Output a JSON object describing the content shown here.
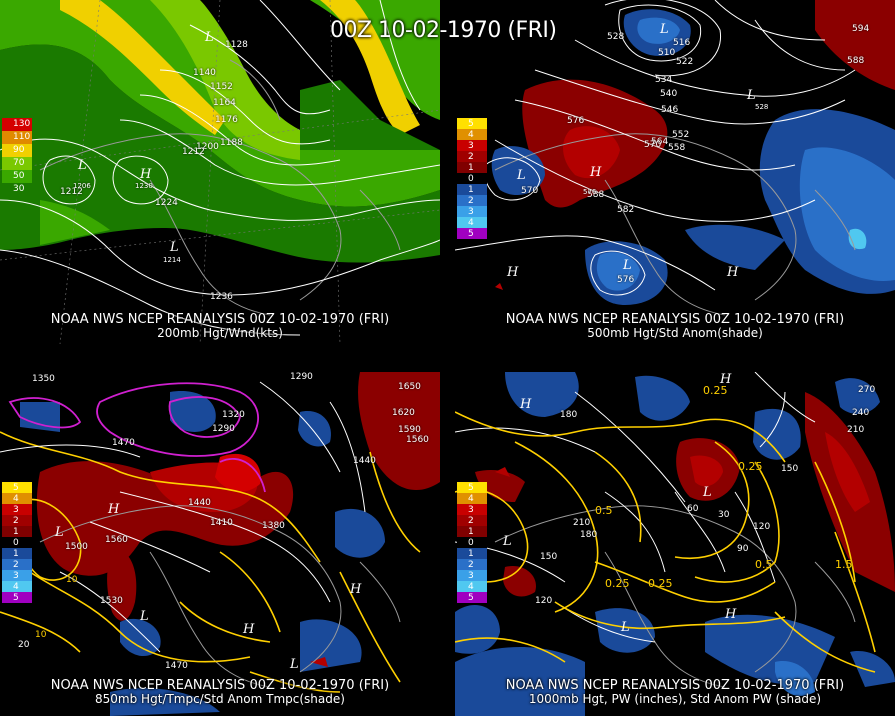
{
  "title": "00Z 10-02-1970 (FRI)",
  "panels": [
    {
      "id": "p200",
      "caption1": "NOAA NWS NCEP REANALYSIS 00Z 10-02-1970 (FRI)",
      "caption2": "200mb Hgt/Wnd(kts)",
      "legend": [
        "130",
        "110",
        "90",
        "70",
        "50",
        "30"
      ],
      "legend_colors": [
        "#d40000",
        "#e08a00",
        "#f0d000",
        "#7ac800",
        "#3aa800",
        "#1a7a00"
      ],
      "labels": [
        "1128",
        "1140",
        "1152",
        "1164",
        "1176",
        "1188",
        "1200",
        "1212",
        "1224",
        "1236",
        "1212",
        "1230",
        "1214",
        "1206"
      ],
      "lows": [
        "L",
        "L",
        "L"
      ],
      "highs": [
        "H"
      ]
    },
    {
      "id": "p500",
      "caption1": "NOAA NWS NCEP REANALYSIS 00Z 10-02-1970 (FRI)",
      "caption2": "500mb Hgt/Std Anom(shade)",
      "legend": [
        "5",
        "4",
        "3",
        "2",
        "1",
        "0",
        "1",
        "2",
        "3",
        "4",
        "5"
      ],
      "legend_colors": [
        "#ffe000",
        "#e09000",
        "#c80000",
        "#a00000",
        "#800000",
        "#000000",
        "#1a4a9a",
        "#2a70c8",
        "#3aa0e8",
        "#50c8f0",
        "#a000c0"
      ],
      "labels": [
        "528",
        "510",
        "516",
        "522",
        "534",
        "540",
        "546",
        "552",
        "558",
        "564",
        "570",
        "576",
        "582",
        "588",
        "594",
        "588",
        "570",
        "576",
        "576",
        "528"
      ],
      "lows": [
        "L",
        "L",
        "L",
        "L"
      ],
      "highs": [
        "H",
        "H",
        "H"
      ]
    },
    {
      "id": "p850",
      "caption1": "NOAA NWS NCEP REANALYSIS 00Z 10-02-1970 (FRI)",
      "caption2": "850mb Hgt/Tmpc/Std Anom Tmpc(shade)",
      "legend": [
        "5",
        "4",
        "3",
        "2",
        "1",
        "0",
        "1",
        "2",
        "3",
        "4",
        "5"
      ],
      "legend_colors": [
        "#ffe000",
        "#e09000",
        "#c80000",
        "#a00000",
        "#800000",
        "#000000",
        "#1a4a9a",
        "#2a70c8",
        "#3aa0e8",
        "#50c8f0",
        "#a000c0"
      ],
      "labels": [
        "1290",
        "1320",
        "1290",
        "1470",
        "1440",
        "1410",
        "1380",
        "1560",
        "1530",
        "1500",
        "1470",
        "1650",
        "1620",
        "1590",
        "1560",
        "1440",
        "1350",
        "10",
        "10",
        "20"
      ],
      "lows": [
        "L",
        "L",
        "L"
      ],
      "highs": [
        "H",
        "H",
        "H"
      ]
    },
    {
      "id": "p1000",
      "caption1": "NOAA NWS NCEP REANALYSIS 00Z 10-02-1970 (FRI)",
      "caption2": "1000mb Hgt, PW (inches), Std Anom PW (shade)",
      "legend": [
        "5",
        "4",
        "3",
        "2",
        "1",
        "0",
        "1",
        "2",
        "3",
        "4",
        "5"
      ],
      "legend_colors": [
        "#ffe000",
        "#e09000",
        "#c80000",
        "#a00000",
        "#800000",
        "#000000",
        "#1a4a9a",
        "#2a70c8",
        "#3aa0e8",
        "#50c8f0",
        "#a000c0"
      ],
      "labels": [
        "180",
        "210",
        "180",
        "150",
        "120",
        "60",
        "30",
        "90",
        "120",
        "150",
        "0.25",
        "0.25",
        "0.5",
        "0.25",
        "0.25",
        "0.5",
        "1.5",
        "270",
        "240",
        "210"
      ],
      "lows": [
        "L",
        "L",
        "L"
      ],
      "highs": [
        "H",
        "H",
        "H"
      ]
    }
  ]
}
